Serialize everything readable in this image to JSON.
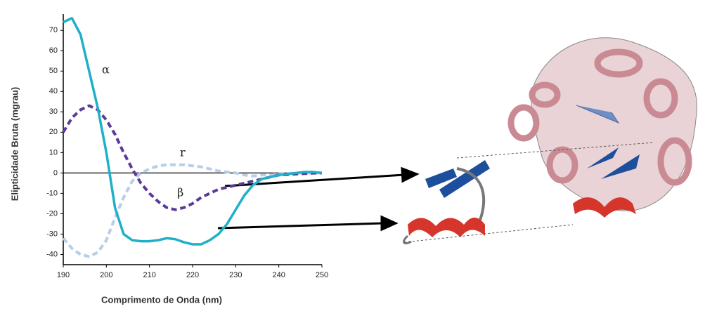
{
  "chart_data": {
    "type": "line",
    "x_label": "Comprimento de Onda (nm)",
    "y_label": "Elipticidade Bruta (mgrau)",
    "x": [
      190,
      192,
      194,
      196,
      198,
      200,
      202,
      204,
      206,
      208,
      210,
      212,
      214,
      216,
      218,
      220,
      222,
      224,
      226,
      228,
      230,
      232,
      234,
      236,
      238,
      240,
      242,
      244,
      246,
      248,
      250
    ],
    "series": [
      {
        "name": "α",
        "color": "#1fb0c8",
        "dash": false,
        "values": [
          74,
          76,
          68,
          50,
          32,
          10,
          -17,
          -30,
          -33,
          -33.5,
          -33.5,
          -33,
          -32,
          -32.5,
          -34,
          -35,
          -35,
          -33,
          -30,
          -25,
          -18,
          -11,
          -6,
          -3,
          -2,
          -1,
          -0.5,
          0,
          0.5,
          0.5,
          0
        ]
      },
      {
        "name": "β",
        "color": "#5a3a9a",
        "dash": true,
        "values": [
          20,
          27,
          31,
          33,
          31,
          26,
          19,
          10,
          2,
          -5,
          -10,
          -14,
          -17,
          -18,
          -17,
          -15,
          -12,
          -10,
          -8,
          -7,
          -6,
          -5,
          -4,
          -3,
          -2,
          -1,
          -0.8,
          -0.5,
          -0.3,
          -0.1,
          0
        ]
      },
      {
        "name": "r",
        "color": "#b8cde8",
        "dash": true,
        "values": [
          -32,
          -37,
          -40,
          -41,
          -39,
          -33,
          -22,
          -12,
          -4,
          0,
          2,
          3.5,
          4,
          4,
          4,
          3.5,
          3,
          2,
          1,
          0.5,
          0,
          -1,
          -1.5,
          -1,
          -1,
          -0.5,
          -0.3,
          0,
          0,
          0,
          0
        ]
      }
    ],
    "xlim": [
      190,
      250
    ],
    "xticks": [
      190,
      200,
      210,
      220,
      230,
      240,
      250
    ],
    "ylim": [
      -45,
      78
    ],
    "yticks": [
      -40,
      -30,
      -20,
      -10,
      0,
      10,
      20,
      30,
      40,
      50,
      60,
      70
    ]
  }
}
